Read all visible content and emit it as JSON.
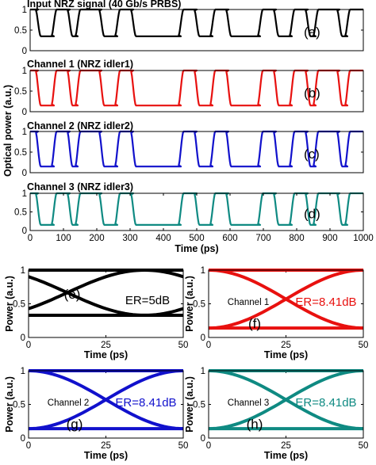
{
  "colors": {
    "black": "#000000",
    "red": "#e8110f",
    "blue": "#1111cc",
    "teal": "#0f8a82"
  },
  "ylabel_top": "Optical power (a.u.)",
  "chart_data": [
    {
      "id": "a",
      "type": "line",
      "title": "Input NRZ signal (40 Gb/s PRBS)",
      "tag": "(a)",
      "xlabel": "",
      "ylabel": "",
      "xlim": [
        0,
        1000
      ],
      "ylim": [
        0,
        1
      ],
      "xticks": [],
      "yticks": [
        0,
        0.5,
        1
      ],
      "ytick_labels": [
        "0",
        "0.5",
        "1"
      ],
      "color": "black",
      "low": 0.35,
      "high": 1.0,
      "bits": "100110111001100000011001100001100110111011",
      "series": [
        {
          "name": "",
          "values": []
        }
      ]
    },
    {
      "id": "b",
      "type": "line",
      "title": "Channel 1  (NRZ idler1)",
      "tag": "(b)",
      "xlabel": "",
      "ylabel": "",
      "xlim": [
        0,
        1000
      ],
      "ylim": [
        0,
        1
      ],
      "xticks": [],
      "yticks": [
        0,
        0.5,
        1
      ],
      "ytick_labels": [
        "0",
        "0.5",
        "1"
      ],
      "color": "red",
      "low": 0.15,
      "high": 1.0,
      "bits": "100110111001100000011001100001100110111011",
      "series": [
        {
          "name": "",
          "values": []
        }
      ]
    },
    {
      "id": "c",
      "type": "line",
      "title": "Channel 2  (NRZ idler2)",
      "tag": "(c)",
      "xlabel": "",
      "ylabel": "",
      "xlim": [
        0,
        1000
      ],
      "ylim": [
        0,
        1
      ],
      "xticks": [],
      "yticks": [
        0,
        0.5,
        1
      ],
      "ytick_labels": [
        "0",
        "0.5",
        "1"
      ],
      "color": "blue",
      "low": 0.15,
      "high": 1.0,
      "bits": "100110111001100000011001100001100110111011",
      "series": [
        {
          "name": "",
          "values": []
        }
      ]
    },
    {
      "id": "d",
      "type": "line",
      "title": "Channel 3  (NRZ idler3)",
      "tag": "(d)",
      "xlabel": "Time (ps)",
      "ylabel": "",
      "xlim": [
        0,
        1000
      ],
      "ylim": [
        0,
        1
      ],
      "xticks": [
        0,
        100,
        200,
        300,
        400,
        500,
        600,
        700,
        800,
        900,
        1000
      ],
      "xtick_labels": [
        "0",
        "100",
        "200",
        "300",
        "400",
        "500",
        "600",
        "700",
        "800",
        "900",
        "1000"
      ],
      "yticks": [
        0,
        0.5,
        1
      ],
      "ytick_labels": [
        "0",
        "0.5",
        "1"
      ],
      "color": "teal",
      "low": 0.15,
      "high": 1.0,
      "bits": "100110111001100000011001100001100110111011",
      "series": [
        {
          "name": "",
          "values": []
        }
      ]
    },
    {
      "id": "e",
      "type": "line",
      "subtype": "eye diagram",
      "tag": "(e)",
      "channel_label": "",
      "er_label": "ER=5dB",
      "xlabel": "Time (ps)",
      "ylabel": "Power (a.u.)",
      "xlim": [
        0,
        50
      ],
      "ylim": [
        0,
        1
      ],
      "xticks": [
        0,
        25,
        50
      ],
      "xtick_labels": [
        "0",
        "25",
        "50"
      ],
      "yticks": [
        0,
        0.5,
        1
      ],
      "ytick_labels": [
        "0",
        "0.5",
        "1"
      ],
      "color": "black",
      "low": 0.33,
      "high": 1.0,
      "crossing_ps": 12.5
    },
    {
      "id": "f",
      "type": "line",
      "subtype": "eye diagram",
      "tag": "(f)",
      "channel_label": "Channel 1",
      "er_label": "ER=8.41dB",
      "xlabel": "Time (ps)",
      "ylabel": "Power (a.u.)",
      "xlim": [
        0,
        50
      ],
      "ylim": [
        0,
        1
      ],
      "xticks": [
        0,
        25,
        50
      ],
      "xtick_labels": [
        "0",
        "25",
        "50"
      ],
      "yticks": [
        0,
        0.5,
        1
      ],
      "ytick_labels": [
        "0",
        "0.5",
        "1"
      ],
      "color": "red",
      "low": 0.14,
      "high": 1.0,
      "crossing_ps": 25
    },
    {
      "id": "g",
      "type": "line",
      "subtype": "eye diagram",
      "tag": "(g)",
      "channel_label": "Channel 2",
      "er_label": "ER=8.41dB",
      "xlabel": "Time (ps)",
      "ylabel": "Power (a.u.)",
      "xlim": [
        0,
        50
      ],
      "ylim": [
        0,
        1
      ],
      "xticks": [
        0,
        25,
        50
      ],
      "xtick_labels": [
        "0",
        "25",
        "50"
      ],
      "yticks": [
        0,
        0.5,
        1
      ],
      "ytick_labels": [
        "0",
        "0.5",
        "1"
      ],
      "color": "blue",
      "low": 0.14,
      "high": 1.0,
      "crossing_ps": 25
    },
    {
      "id": "h",
      "type": "line",
      "subtype": "eye diagram",
      "tag": "(h)",
      "channel_label": "Channel 3",
      "er_label": "ER=8.41dB",
      "xlabel": "Time (ps)",
      "ylabel": "Power (a.u.)",
      "xlim": [
        0,
        50
      ],
      "ylim": [
        0,
        1
      ],
      "xticks": [
        0,
        25,
        50
      ],
      "xtick_labels": [
        "0",
        "25",
        "50"
      ],
      "yticks": [
        0,
        0.5,
        1
      ],
      "ytick_labels": [
        "0",
        "0.5",
        "1"
      ],
      "color": "teal",
      "low": 0.14,
      "high": 1.0,
      "crossing_ps": 25
    }
  ]
}
